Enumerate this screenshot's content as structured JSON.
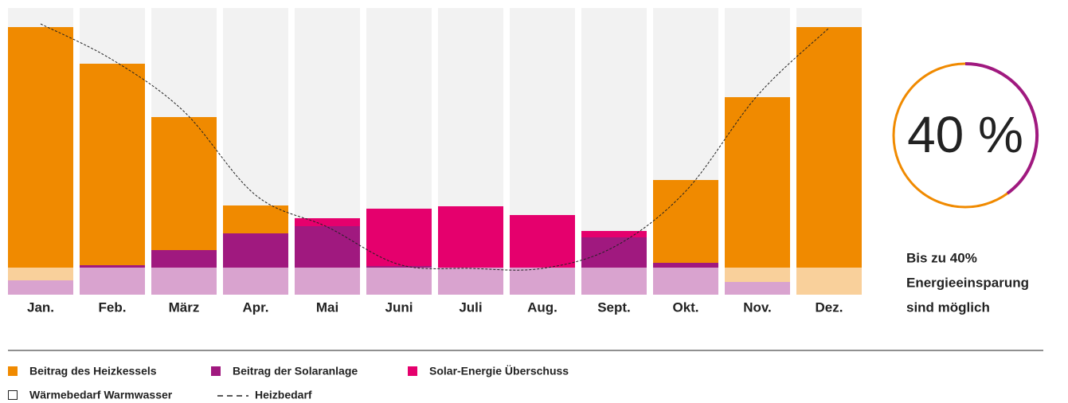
{
  "chart_data": {
    "type": "bar",
    "stacked": true,
    "categories": [
      "Jan.",
      "Feb.",
      "März",
      "Apr.",
      "Mai",
      "Juni",
      "Juli",
      "Aug.",
      "Sept.",
      "Okt.",
      "Nov.",
      "Dez."
    ],
    "ylim": [
      0,
      360
    ],
    "background_color": "#f2f2f2",
    "series": [
      {
        "color": "#d9a3cf",
        "values": [
          18,
          34,
          34,
          34,
          34,
          34,
          34,
          34,
          34,
          34,
          16,
          0
        ]
      },
      {
        "color": "#f9d09b",
        "values": [
          16,
          0,
          0,
          0,
          0,
          0,
          0,
          0,
          0,
          0,
          18,
          34
        ]
      },
      {
        "name": "Beitrag der Solaranlage",
        "color": "#a0197f",
        "values": [
          0,
          3,
          22,
          43,
          52,
          2,
          0,
          0,
          38,
          6,
          0,
          0
        ]
      },
      {
        "name": "Beitrag des Heizkessels",
        "color": "#f08a00",
        "values": [
          302,
          253,
          167,
          35,
          0,
          0,
          0,
          0,
          0,
          104,
          214,
          302
        ]
      },
      {
        "name": "Solar-Energie Überschuss",
        "color": "#e5006d",
        "values": [
          0,
          0,
          0,
          0,
          10,
          72,
          77,
          66,
          8,
          0,
          0,
          0
        ]
      }
    ],
    "warmwater_legend": "Wärmebedarf Warmwasser",
    "line": {
      "name": "Heizbedarf",
      "color": "#222222",
      "values": [
        340,
        295,
        230,
        125,
        85,
        38,
        33,
        33,
        60,
        130,
        250,
        335
      ]
    },
    "donut": {
      "value": 40,
      "label": "40 %",
      "color": "#a0197f",
      "rest_color": "#f08a00"
    },
    "note": [
      "Bis zu 40%",
      "Energieeinsparung",
      "sind möglich"
    ]
  }
}
